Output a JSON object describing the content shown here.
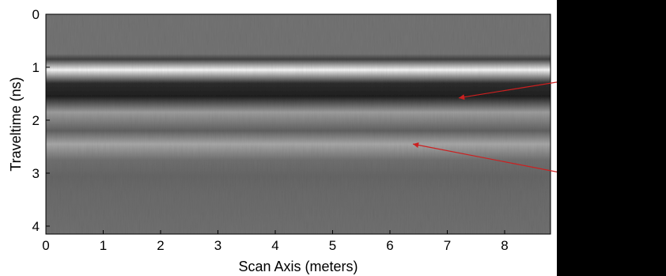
{
  "chart_data": {
    "type": "heatmap",
    "title": "",
    "xlabel": "Scan Axis (meters)",
    "ylabel": "Traveltime (ns)",
    "xlim": [
      0,
      8.8
    ],
    "ylim": [
      4.15,
      0
    ],
    "x_ticks": [
      "0",
      "1",
      "2",
      "3",
      "4",
      "5",
      "6",
      "7",
      "8"
    ],
    "y_ticks": [
      "0",
      "1",
      "2",
      "3",
      "4"
    ],
    "colormap": "grayscale",
    "grid": false,
    "reflector_bands_ns": [
      {
        "traveltime": 0.85,
        "intensity": 0.25
      },
      {
        "traveltime": 1.05,
        "intensity": 0.97
      },
      {
        "traveltime": 1.3,
        "intensity": 0.18
      },
      {
        "traveltime": 1.55,
        "intensity": 0.12
      },
      {
        "traveltime": 1.85,
        "intensity": 0.62
      },
      {
        "traveltime": 2.2,
        "intensity": 0.38
      },
      {
        "traveltime": 2.45,
        "intensity": 0.66
      },
      {
        "traveltime": 2.75,
        "intensity": 0.44
      }
    ],
    "annotations": [
      {
        "type": "arrow",
        "color": "#cc2020",
        "to_x": 7.2,
        "to_y": 1.58
      },
      {
        "type": "arrow",
        "color": "#cc2020",
        "to_x": 6.4,
        "to_y": 2.45
      }
    ]
  }
}
